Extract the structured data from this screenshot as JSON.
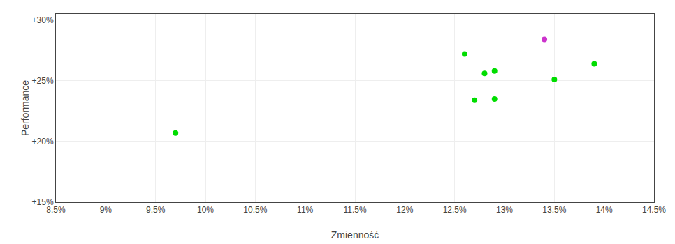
{
  "chart_data": {
    "type": "scatter",
    "xlabel": "Zmienność",
    "ylabel": "Performance",
    "xlim": [
      0.085,
      0.145
    ],
    "ylim": [
      0.15,
      0.305
    ],
    "xticks": [
      {
        "value": 0.085,
        "label": "8.5%"
      },
      {
        "value": 0.09,
        "label": "9%"
      },
      {
        "value": 0.095,
        "label": "9.5%"
      },
      {
        "value": 0.1,
        "label": "10%"
      },
      {
        "value": 0.105,
        "label": "10.5%"
      },
      {
        "value": 0.11,
        "label": "11%"
      },
      {
        "value": 0.115,
        "label": "11.5%"
      },
      {
        "value": 0.12,
        "label": "12%"
      },
      {
        "value": 0.125,
        "label": "12.5%"
      },
      {
        "value": 0.13,
        "label": "13%"
      },
      {
        "value": 0.135,
        "label": "13.5%"
      },
      {
        "value": 0.14,
        "label": "14%"
      },
      {
        "value": 0.145,
        "label": "14.5%"
      }
    ],
    "yticks": [
      {
        "value": 0.15,
        "label": "+15%"
      },
      {
        "value": 0.2,
        "label": "+20%"
      },
      {
        "value": 0.25,
        "label": "+25%"
      },
      {
        "value": 0.3,
        "label": "+30%"
      }
    ],
    "grid": true,
    "series": [
      {
        "color": "#00dd00",
        "x": [
          0.097,
          0.126,
          0.128,
          0.129,
          0.127,
          0.129,
          0.135,
          0.139
        ],
        "values": [
          0.207,
          0.272,
          0.256,
          0.258,
          0.234,
          0.235,
          0.251,
          0.264
        ]
      },
      {
        "color": "#cc33cc",
        "x": [
          0.134
        ],
        "values": [
          0.284
        ]
      }
    ]
  }
}
